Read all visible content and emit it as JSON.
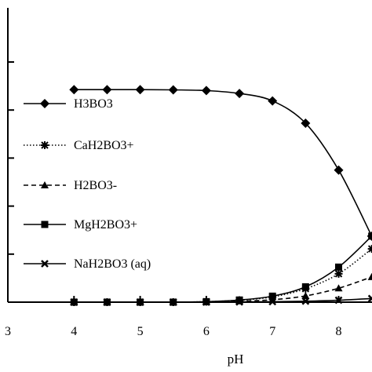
{
  "chart_data": {
    "type": "line",
    "title": "",
    "xlabel": "pH",
    "ylabel": "",
    "xlim": [
      3,
      8.55
    ],
    "ylim": [
      0,
      1.05
    ],
    "x_ticks": [
      "3",
      "4",
      "5",
      "6",
      "7",
      "8"
    ],
    "y_tick_values": [
      0,
      0.2,
      0.4,
      0.6,
      0.8,
      1.0
    ],
    "grid": false,
    "legend_position": "left",
    "x": [
      4,
      4.5,
      5,
      5.5,
      6,
      6.5,
      7,
      7.5,
      8,
      8.5
    ],
    "series": [
      {
        "name": "H3BO3",
        "marker": "diamond",
        "line": "solid",
        "color": "#000000",
        "values": [
          0.885,
          0.885,
          0.885,
          0.884,
          0.881,
          0.869,
          0.838,
          0.745,
          0.55,
          0.275
        ]
      },
      {
        "name": "CaH2BO3+",
        "marker": "star",
        "line": "dotted",
        "color": "#000000",
        "values": [
          0.0,
          0.0,
          0.0,
          0.0,
          0.002,
          0.008,
          0.022,
          0.056,
          0.118,
          0.222
        ]
      },
      {
        "name": "H2BO3-",
        "marker": "triangle",
        "line": "dashed",
        "color": "#000000",
        "values": [
          0.0,
          0.0,
          0.0,
          0.0,
          0.001,
          0.004,
          0.01,
          0.026,
          0.058,
          0.105
        ]
      },
      {
        "name": "MgH2BO3+",
        "marker": "square",
        "line": "solid",
        "color": "#000000",
        "values": [
          0.0,
          0.0,
          0.0,
          0.0,
          0.002,
          0.009,
          0.025,
          0.064,
          0.146,
          0.275
        ]
      },
      {
        "name": "NaH2BO3 (aq)",
        "marker": "x",
        "line": "solid",
        "color": "#000000",
        "values": [
          0.0,
          0.0,
          0.0,
          0.0,
          0.0,
          0.001,
          0.002,
          0.004,
          0.008,
          0.015
        ]
      }
    ]
  }
}
